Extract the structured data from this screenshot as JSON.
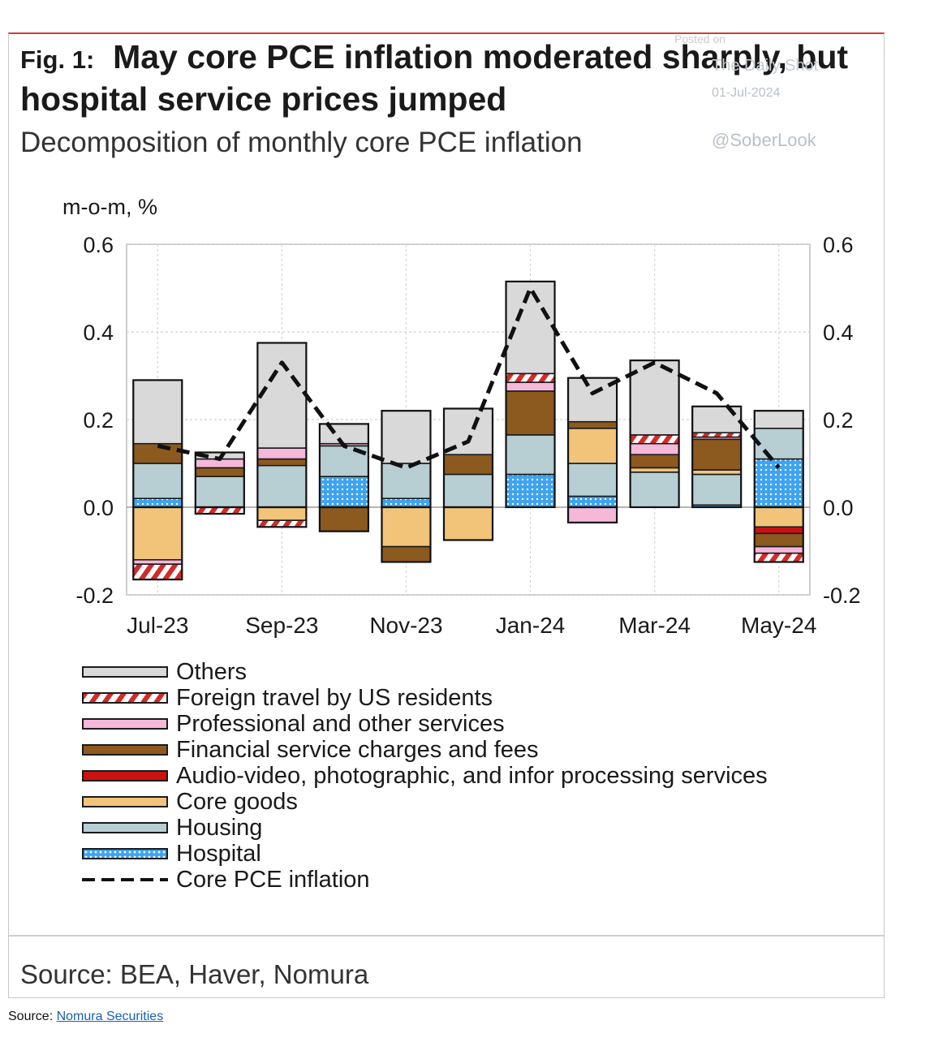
{
  "header": {
    "fig_label": "Fig. 1:",
    "title": "May core PCE inflation moderated sharply, but hospital service prices jumped",
    "subtitle": "Decomposition of monthly core PCE inflation"
  },
  "watermark": {
    "posted": "Posted on",
    "name": "The Daily Shot",
    "date": "01-Jul-2024",
    "handle": "@SoberLook"
  },
  "chart_data": {
    "type": "bar",
    "stacked": true,
    "ylabel": "m-o-m, %",
    "ylim": [
      -0.2,
      0.6
    ],
    "yticks": [
      -0.2,
      0.0,
      0.2,
      0.4,
      0.6
    ],
    "ytick_labels": [
      "-0.2",
      "0.0",
      "0.2",
      "0.4",
      "0.6"
    ],
    "categories": [
      "Jul-23",
      "Aug-23",
      "Sep-23",
      "Oct-23",
      "Nov-23",
      "Dec-23",
      "Jan-24",
      "Feb-24",
      "Mar-24",
      "Apr-24",
      "May-24"
    ],
    "xtick_labels": [
      "Jul-23",
      "",
      "Sep-23",
      "",
      "Nov-23",
      "",
      "Jan-24",
      "",
      "Mar-24",
      "",
      "May-24"
    ],
    "grid": true,
    "legend_position": "bottom",
    "series": [
      {
        "name": "Hospital",
        "color": "#3ea3f0",
        "pattern": "dots",
        "values": [
          0.02,
          0.0,
          0.0,
          0.07,
          0.02,
          0.0,
          0.075,
          0.025,
          0.0,
          0.005,
          0.11
        ]
      },
      {
        "name": "Housing",
        "color": "#b7ced3",
        "pattern": "none",
        "values": [
          0.08,
          0.07,
          0.095,
          0.07,
          0.08,
          0.075,
          0.09,
          0.075,
          0.08,
          0.07,
          0.07
        ]
      },
      {
        "name": "Core goods",
        "color": "#f2c47a",
        "pattern": "none",
        "values": [
          -0.12,
          0.0,
          -0.03,
          0.0,
          -0.09,
          -0.075,
          0.0,
          0.08,
          0.01,
          0.01,
          -0.045
        ]
      },
      {
        "name": "Audio-video, photographic, and infor processing services",
        "color": "#cc1111",
        "pattern": "none",
        "values": [
          0.0,
          0.0,
          0.0,
          0.0,
          0.0,
          0.0,
          0.0,
          0.0,
          0.0,
          0.0,
          -0.015
        ]
      },
      {
        "name": "Financial service charges and fees",
        "color": "#8c5a1e",
        "pattern": "none",
        "values": [
          0.045,
          0.02,
          0.015,
          -0.055,
          -0.035,
          0.045,
          0.1,
          0.015,
          0.03,
          0.07,
          -0.03
        ]
      },
      {
        "name": "Professional and other services",
        "color": "#f5b8d9",
        "pattern": "none",
        "values": [
          -0.01,
          0.02,
          0.025,
          0.005,
          0.0,
          0.0,
          0.02,
          -0.035,
          0.025,
          0.005,
          -0.015
        ]
      },
      {
        "name": "Foreign travel by US residents",
        "color": "#d42a2a",
        "pattern": "stripes",
        "values": [
          -0.035,
          -0.015,
          -0.015,
          0.0,
          0.0,
          0.0,
          0.02,
          0.0,
          0.02,
          0.01,
          -0.02
        ]
      },
      {
        "name": "Others",
        "color": "#d9d9d9",
        "pattern": "none",
        "values": [
          0.145,
          0.015,
          0.24,
          0.045,
          0.12,
          0.105,
          0.21,
          0.1,
          0.17,
          0.06,
          0.04
        ]
      }
    ],
    "line": {
      "name": "Core PCE inflation",
      "color": "#111111",
      "style": "dashed",
      "values": [
        0.14,
        0.11,
        0.33,
        0.14,
        0.09,
        0.15,
        0.5,
        0.26,
        0.33,
        0.26,
        0.09
      ]
    }
  },
  "legend": {
    "items": [
      {
        "label": "Others",
        "swatch": "sw-others"
      },
      {
        "label": "Foreign travel by US residents",
        "swatch": "sw-foreign"
      },
      {
        "label": "Professional and other services",
        "swatch": "sw-prof"
      },
      {
        "label": "Financial service charges and fees",
        "swatch": "sw-fin"
      },
      {
        "label": "Audio-video, photographic, and infor processing services",
        "swatch": "sw-audio"
      },
      {
        "label": "Core goods",
        "swatch": "sw-goods"
      },
      {
        "label": "Housing",
        "swatch": "sw-housing"
      },
      {
        "label": "Hospital",
        "swatch": "sw-hosp"
      },
      {
        "label": "Core PCE inflation",
        "swatch": "line"
      }
    ]
  },
  "source_note": "Source: BEA, Haver, Nomura",
  "footer": {
    "prefix": "Source: ",
    "link_text": "Nomura Securities"
  }
}
